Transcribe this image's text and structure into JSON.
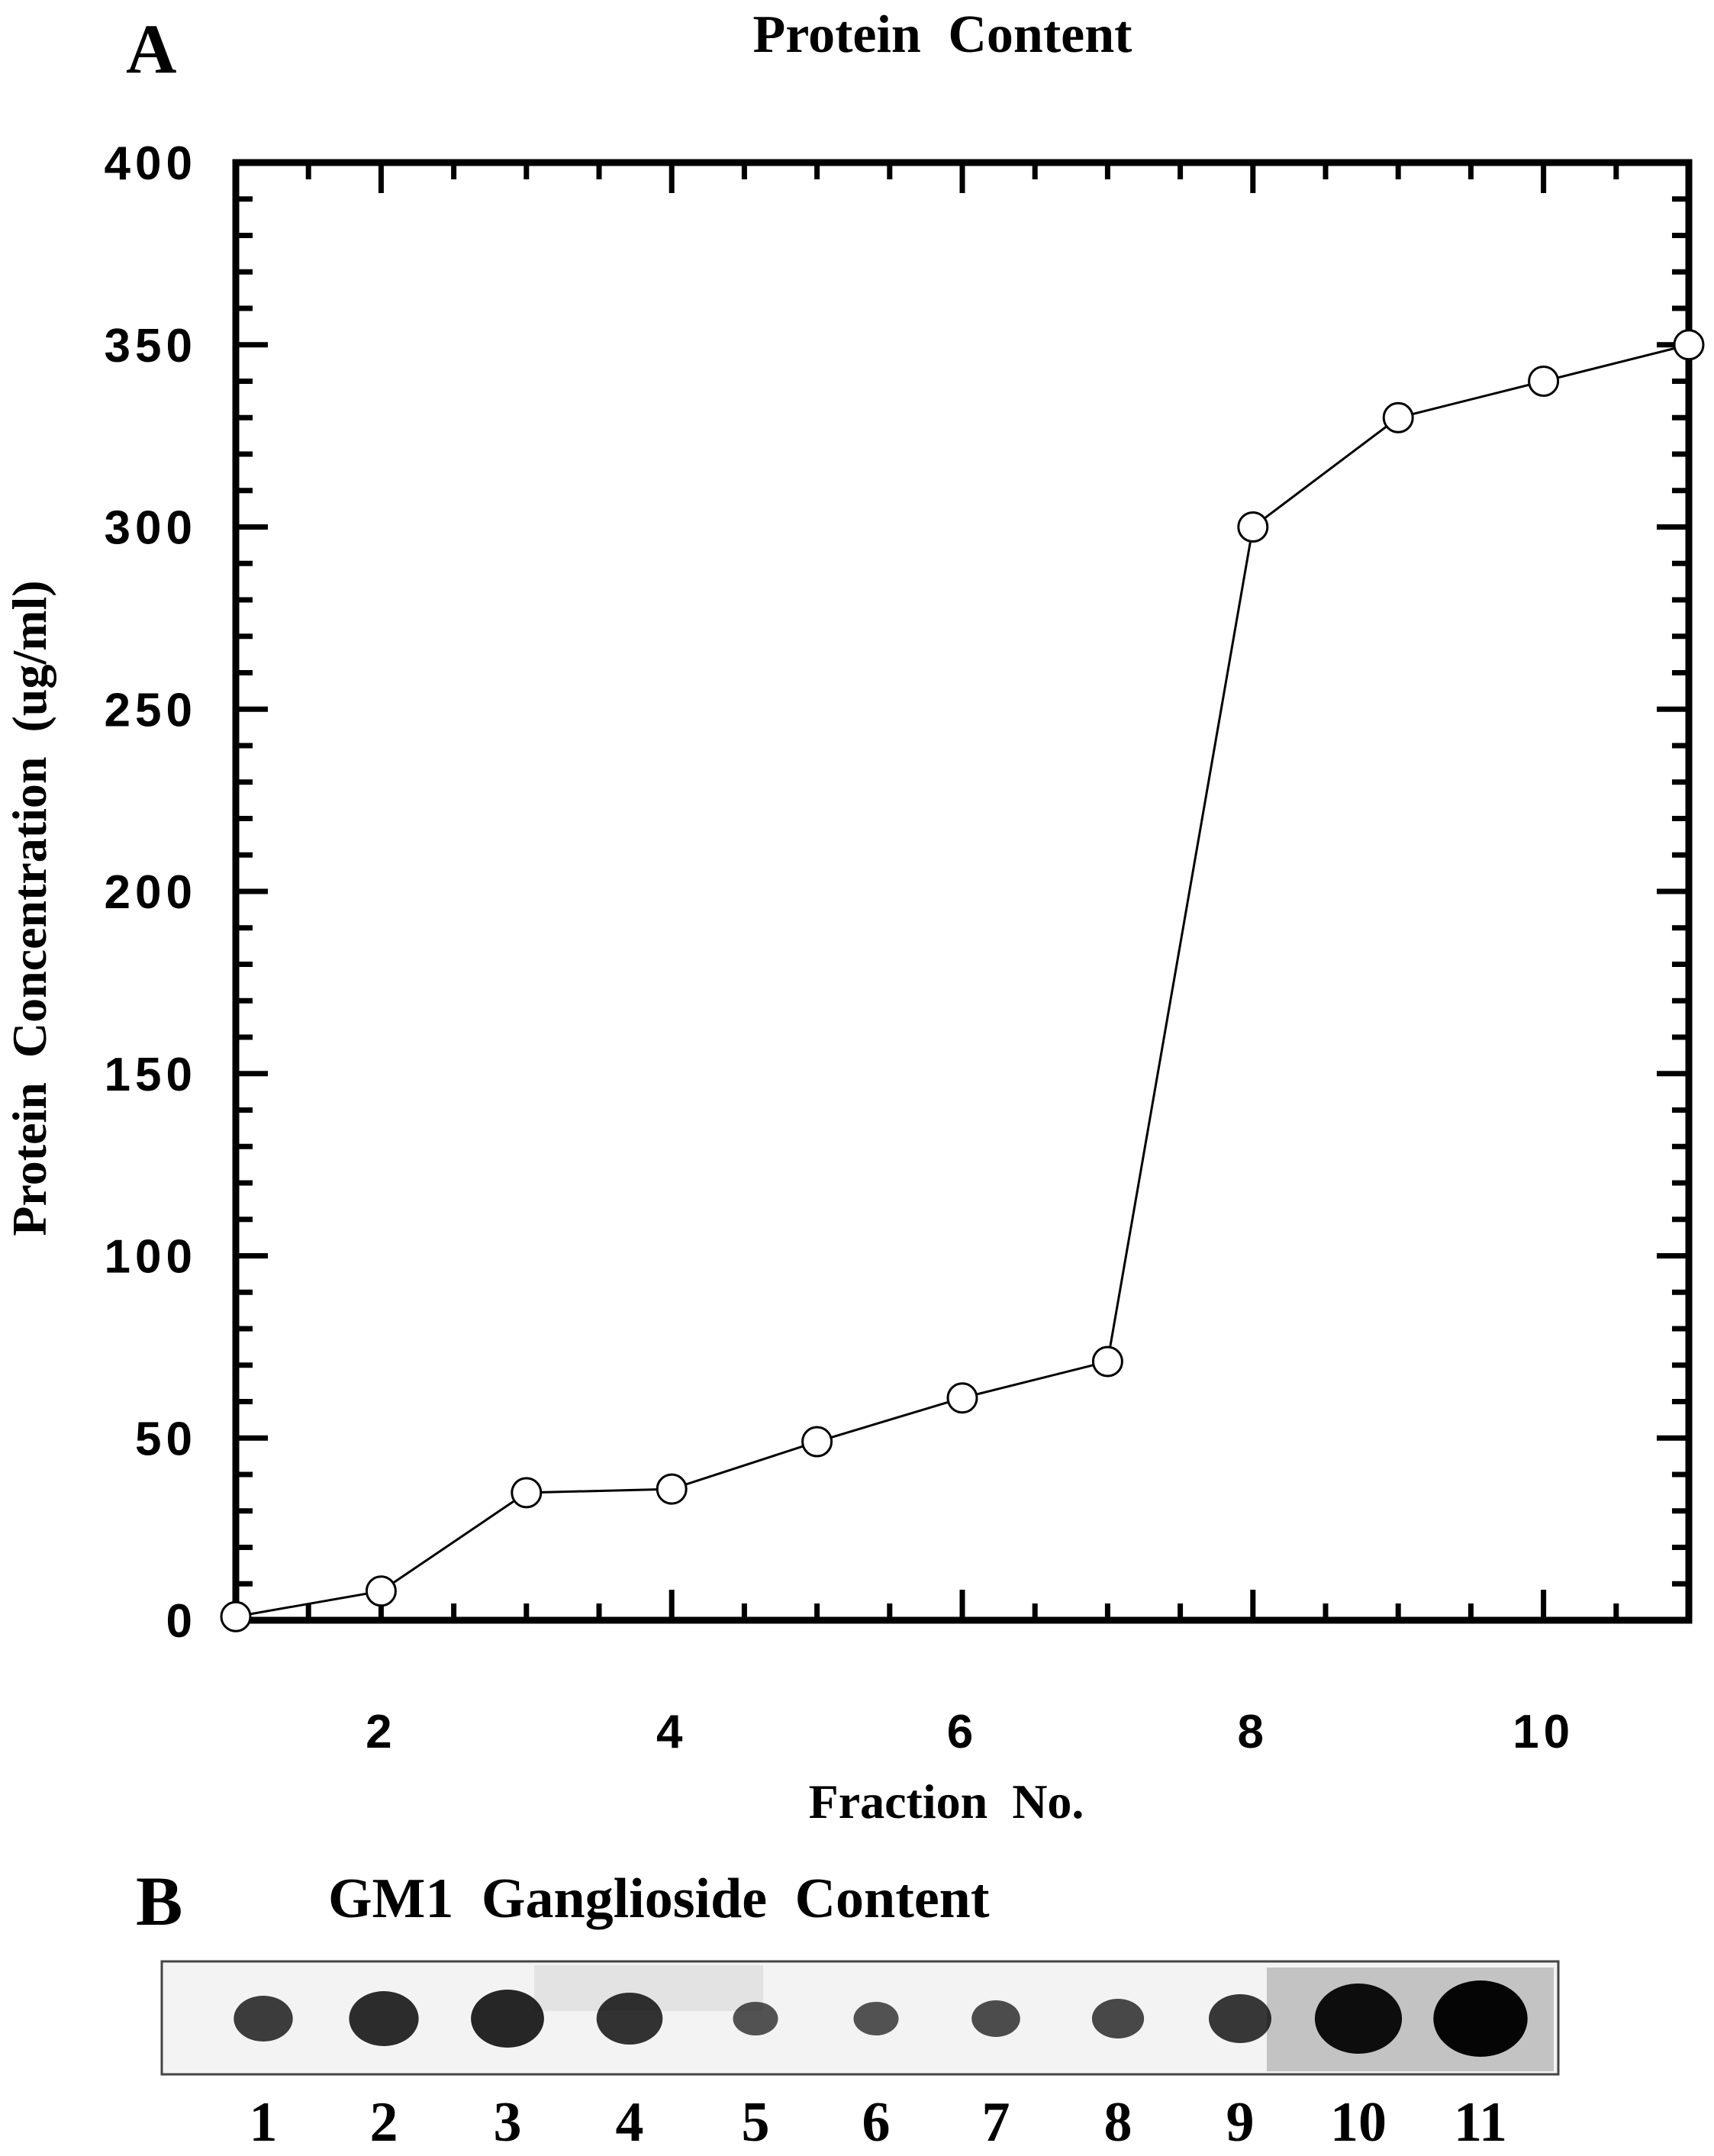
{
  "panel_a": {
    "letter": "A",
    "chart_data": {
      "type": "line",
      "title": "Protein Content",
      "xlabel": "Fraction No.",
      "ylabel": "Protein Concentration (ug/ml)",
      "xlim": [
        1,
        11
      ],
      "ylim": [
        0,
        400
      ],
      "x_ticks": [
        2,
        4,
        6,
        8,
        10
      ],
      "y_ticks": [
        0,
        50,
        100,
        150,
        200,
        250,
        300,
        350,
        400
      ],
      "grid": false,
      "marker": "open-circle",
      "series": [
        {
          "x": [
            1,
            2,
            3,
            4,
            5,
            6,
            7,
            8,
            9,
            10,
            11
          ],
          "values": [
            1,
            8,
            35,
            36,
            49,
            61,
            71,
            300,
            330,
            340,
            350
          ]
        }
      ]
    }
  },
  "panel_b": {
    "letter": "B",
    "title": "GM1 Ganglioside Content",
    "lanes": [
      "1",
      "2",
      "3",
      "4",
      "5",
      "6",
      "7",
      "8",
      "9",
      "10",
      "11"
    ],
    "spot_intensity": [
      0.45,
      0.6,
      0.65,
      0.55,
      0.25,
      0.25,
      0.3,
      0.35,
      0.5,
      0.85,
      0.95
    ],
    "ink_color": "#000000"
  }
}
